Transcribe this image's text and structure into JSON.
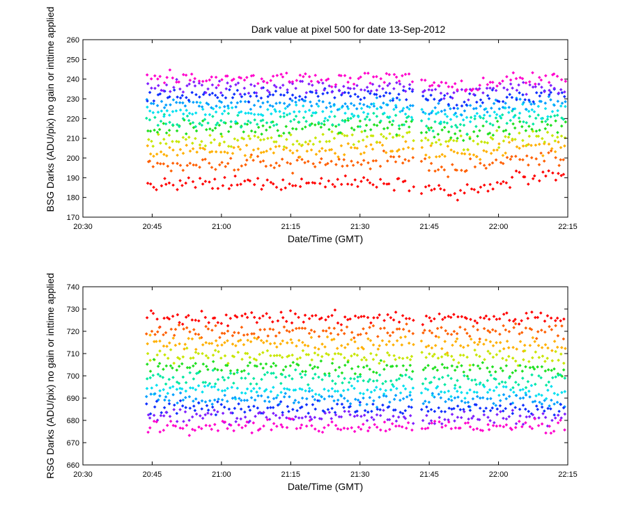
{
  "chart_data": [
    {
      "type": "scatter",
      "id": "bsg",
      "title": "Dark value at pixel 500 for date 13-Sep-2012",
      "xlabel": "Date/Time (GMT)",
      "ylabel": "BSG Darks (ADU/pix) no gain or inttime applied",
      "xlim": [
        "20:30",
        "22:15"
      ],
      "ylim": [
        170,
        260
      ],
      "xticks": [
        "20:30",
        "20:45",
        "21:00",
        "21:15",
        "21:30",
        "21:45",
        "22:00",
        "22:15"
      ],
      "yticks": [
        170,
        180,
        190,
        200,
        210,
        220,
        230,
        240,
        250,
        260
      ],
      "grid": false,
      "legend": "none",
      "data_span": {
        "start": "20:44",
        "end": "22:15",
        "gap_start": "21:42",
        "gap_end": "21:43"
      },
      "series": [
        {
          "color": "#ff0000",
          "level_start": 186,
          "level_end": 190,
          "dip": -8
        },
        {
          "color": "#ff6000",
          "level_start": 196,
          "level_end": 200,
          "dip": -5
        },
        {
          "color": "#ffb000",
          "level_start": 203,
          "level_end": 206,
          "dip": -4
        },
        {
          "color": "#c8e600",
          "level_start": 209,
          "level_end": 211,
          "dip": -3
        },
        {
          "color": "#20e020",
          "level_start": 215,
          "level_end": 216,
          "dip": -3
        },
        {
          "color": "#00e8a0",
          "level_start": 219,
          "level_end": 220,
          "dip": -3
        },
        {
          "color": "#00e0f0",
          "level_start": 223,
          "level_end": 224,
          "dip": -3
        },
        {
          "color": "#00a0ff",
          "level_start": 227,
          "level_end": 228,
          "dip": -3
        },
        {
          "color": "#1030ff",
          "level_start": 232,
          "level_end": 232,
          "dip": -4
        },
        {
          "color": "#8020ff",
          "level_start": 236,
          "level_end": 236,
          "dip": -4
        },
        {
          "color": "#ff00cc",
          "level_start": 241,
          "level_end": 240,
          "dip": -5
        }
      ]
    },
    {
      "type": "scatter",
      "id": "rsg",
      "title": "",
      "xlabel": "Date/Time (GMT)",
      "ylabel": "RSG Darks (ADU/pix) no gain or inttime applied",
      "xlim": [
        "20:30",
        "22:15"
      ],
      "ylim": [
        660,
        740
      ],
      "xticks": [
        "20:30",
        "20:45",
        "21:00",
        "21:15",
        "21:30",
        "21:45",
        "22:00",
        "22:15"
      ],
      "yticks": [
        660,
        670,
        680,
        690,
        700,
        710,
        720,
        730,
        740
      ],
      "grid": false,
      "legend": "none",
      "data_span": {
        "start": "20:44",
        "end": "22:15",
        "gap_start": "21:42",
        "gap_end": "21:43"
      },
      "series": [
        {
          "color": "#ff0000",
          "level_start": 726,
          "level_end": 726,
          "dip": 0
        },
        {
          "color": "#ff6000",
          "level_start": 720,
          "level_end": 720,
          "dip": 0
        },
        {
          "color": "#ffb000",
          "level_start": 715,
          "level_end": 714,
          "dip": 0
        },
        {
          "color": "#c8e600",
          "level_start": 709,
          "level_end": 708,
          "dip": 0
        },
        {
          "color": "#20e020",
          "level_start": 704,
          "level_end": 703,
          "dip": 0
        },
        {
          "color": "#00e8a0",
          "level_start": 699,
          "level_end": 698,
          "dip": 0
        },
        {
          "color": "#00e0f0",
          "level_start": 694,
          "level_end": 693,
          "dip": 0
        },
        {
          "color": "#00a0ff",
          "level_start": 690,
          "level_end": 689,
          "dip": 0
        },
        {
          "color": "#1030ff",
          "level_start": 686,
          "level_end": 685,
          "dip": 0
        },
        {
          "color": "#8020ff",
          "level_start": 682,
          "level_end": 681,
          "dip": 0
        },
        {
          "color": "#ff00cc",
          "level_start": 678,
          "level_end": 677,
          "dip": 0
        }
      ]
    }
  ]
}
